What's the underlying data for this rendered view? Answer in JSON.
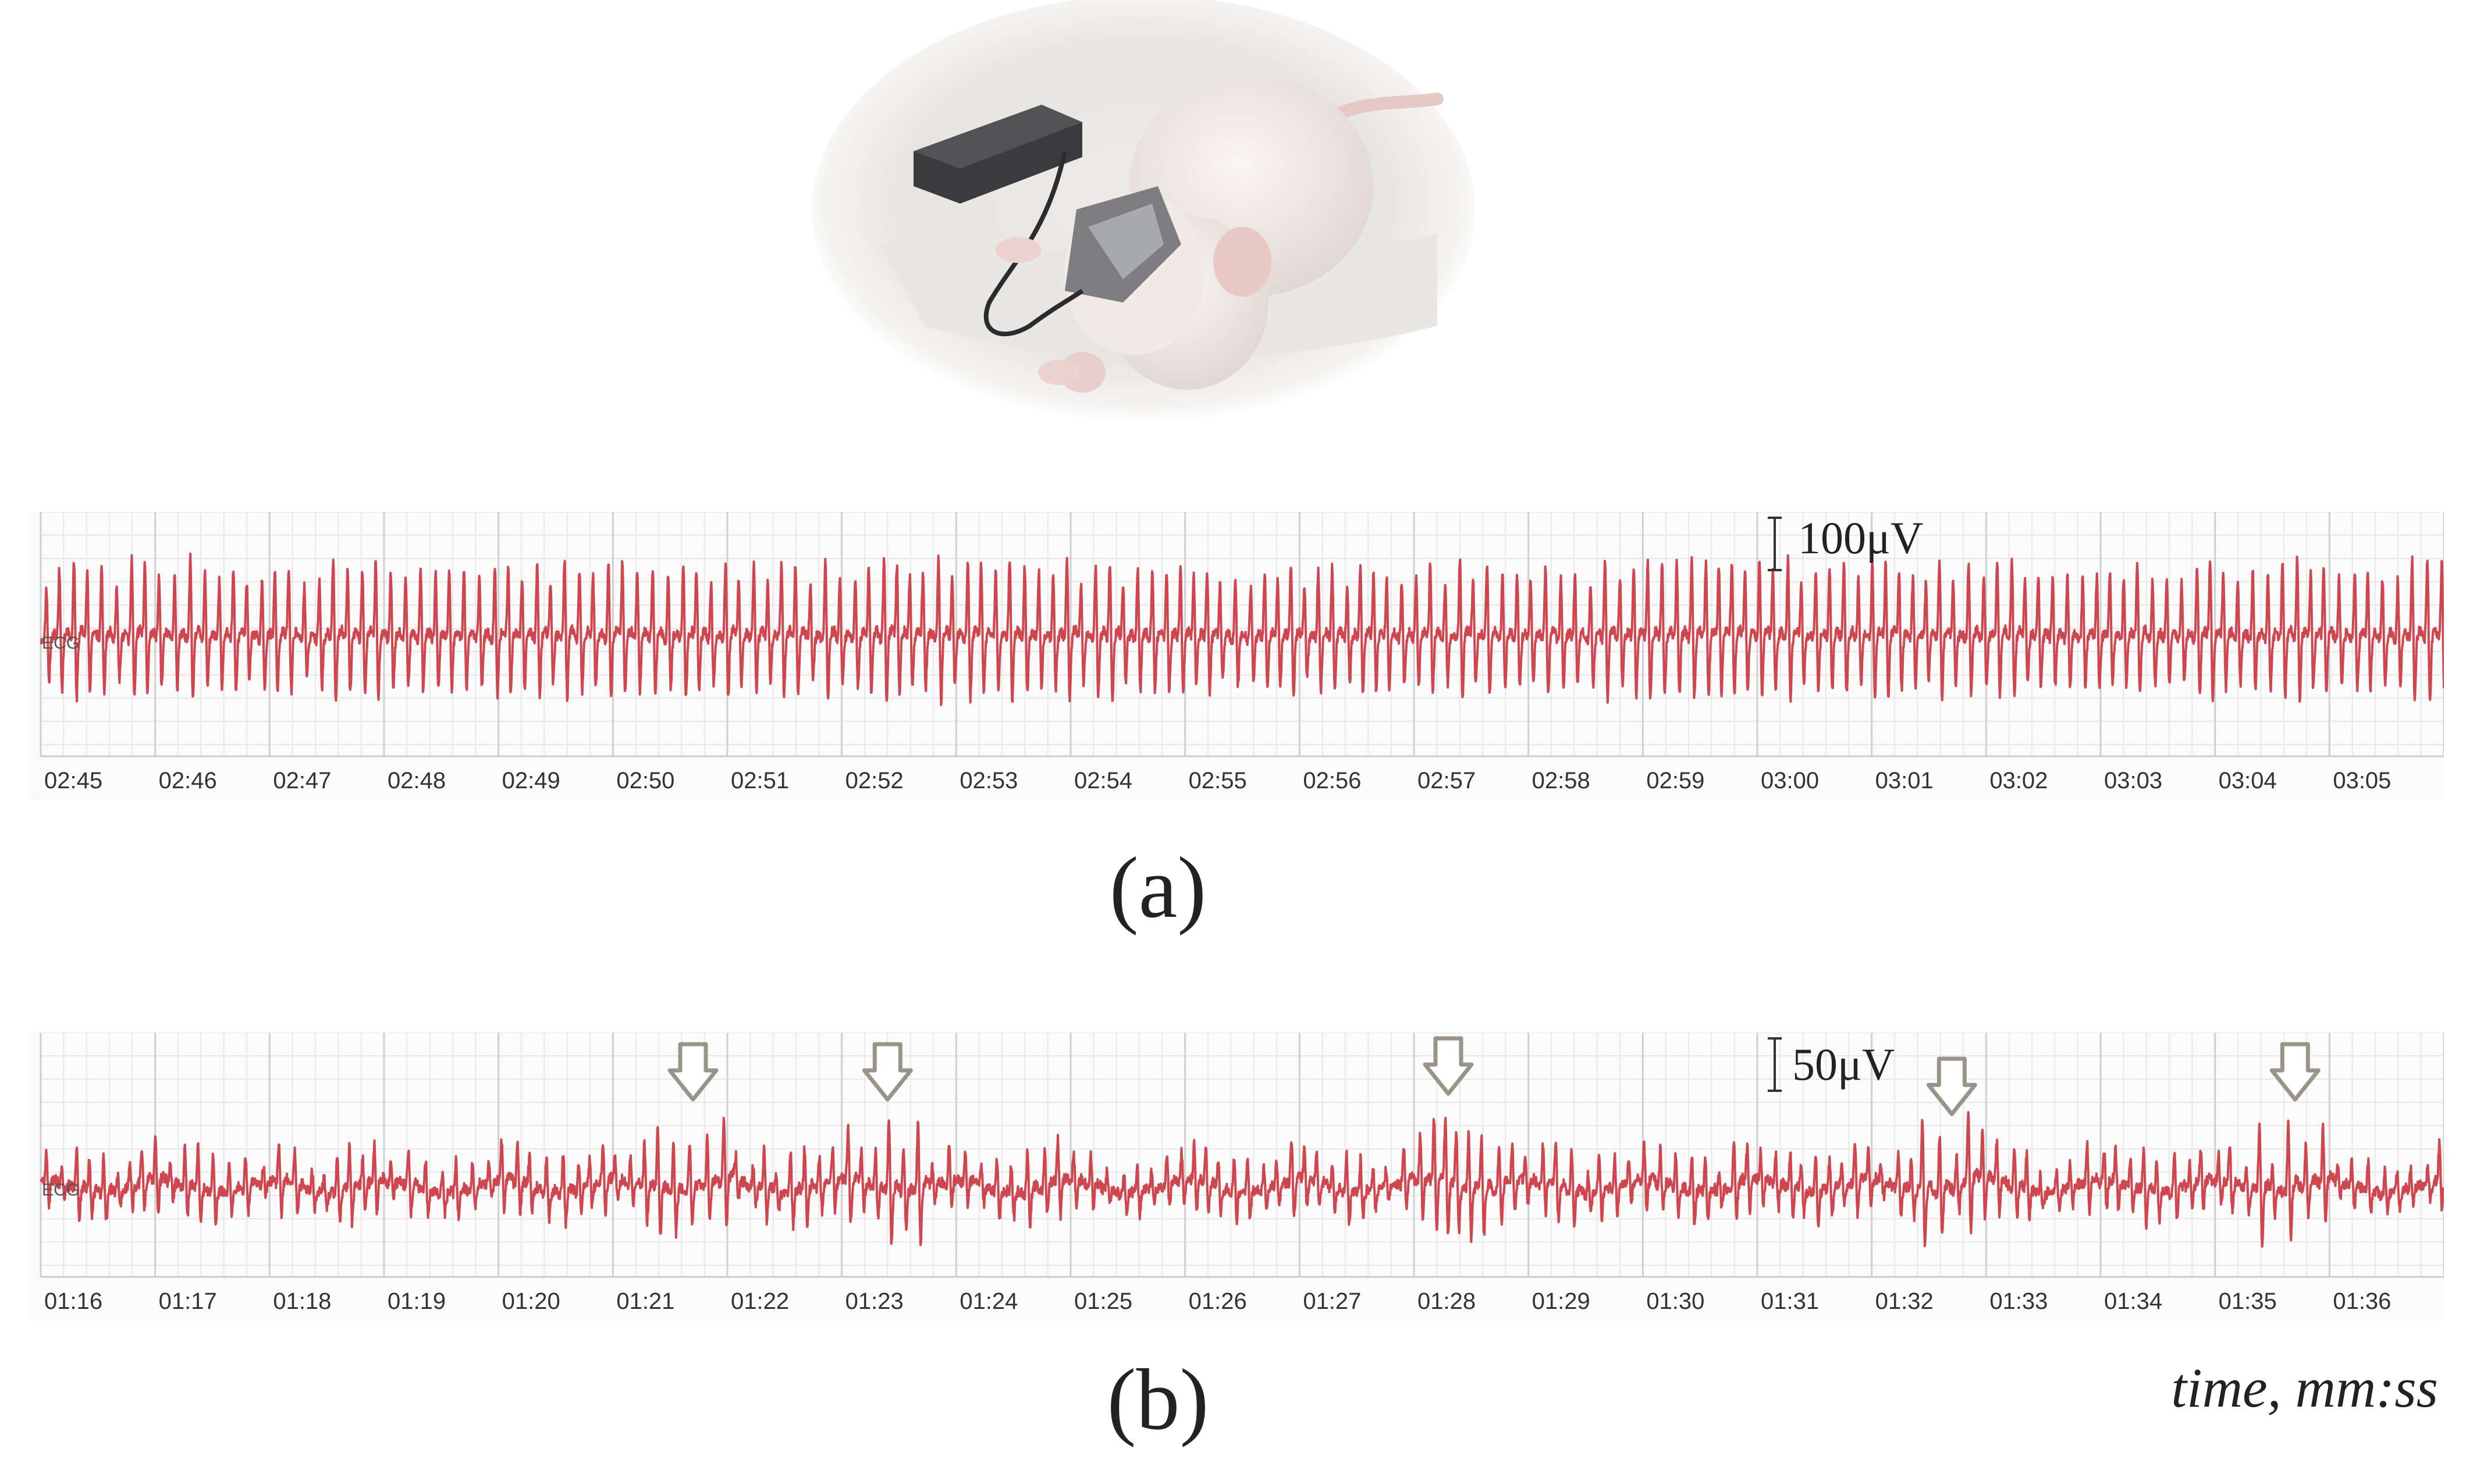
{
  "figure": {
    "photo_alt": "",
    "label_a": "(a)",
    "label_b": "(b)",
    "time_axis_label": "time, mm:ss"
  },
  "chart_data": [
    {
      "type": "line",
      "id": "a",
      "trace_label": "ECG",
      "scale_bar": "100μV",
      "x_ticks": [
        "02:45",
        "02:46",
        "02:47",
        "02:48",
        "02:49",
        "02:50",
        "02:51",
        "02:52",
        "02:53",
        "02:54",
        "02:55",
        "02:56",
        "02:57",
        "02:58",
        "02:59",
        "03:00",
        "03:01",
        "03:02",
        "03:03",
        "03:04",
        "03:05"
      ],
      "xlim": [
        "02:45",
        "03:06"
      ],
      "series": [
        {
          "color": "#d0464f",
          "beats_per_second": 8,
          "pattern": "regular"
        }
      ],
      "grid": true,
      "arrows_at": []
    },
    {
      "type": "line",
      "id": "b",
      "trace_label": "ECG",
      "scale_bar": "50μV",
      "x_ticks": [
        "01:16",
        "01:17",
        "01:18",
        "01:19",
        "01:20",
        "01:21",
        "01:22",
        "01:23",
        "01:24",
        "01:25",
        "01:26",
        "01:27",
        "01:28",
        "01:29",
        "01:30",
        "01:31",
        "01:32",
        "01:33",
        "01:34",
        "01:35",
        "01:36"
      ],
      "xlim": [
        "01:16",
        "01:37"
      ],
      "series": [
        {
          "color": "#d0464f",
          "beats_per_second": 8,
          "pattern": "irregular"
        }
      ],
      "grid": true,
      "arrows_at": [
        "01:21.7",
        "01:23.4",
        "01:28.3",
        "01:32.7",
        "01:35.7"
      ]
    }
  ]
}
